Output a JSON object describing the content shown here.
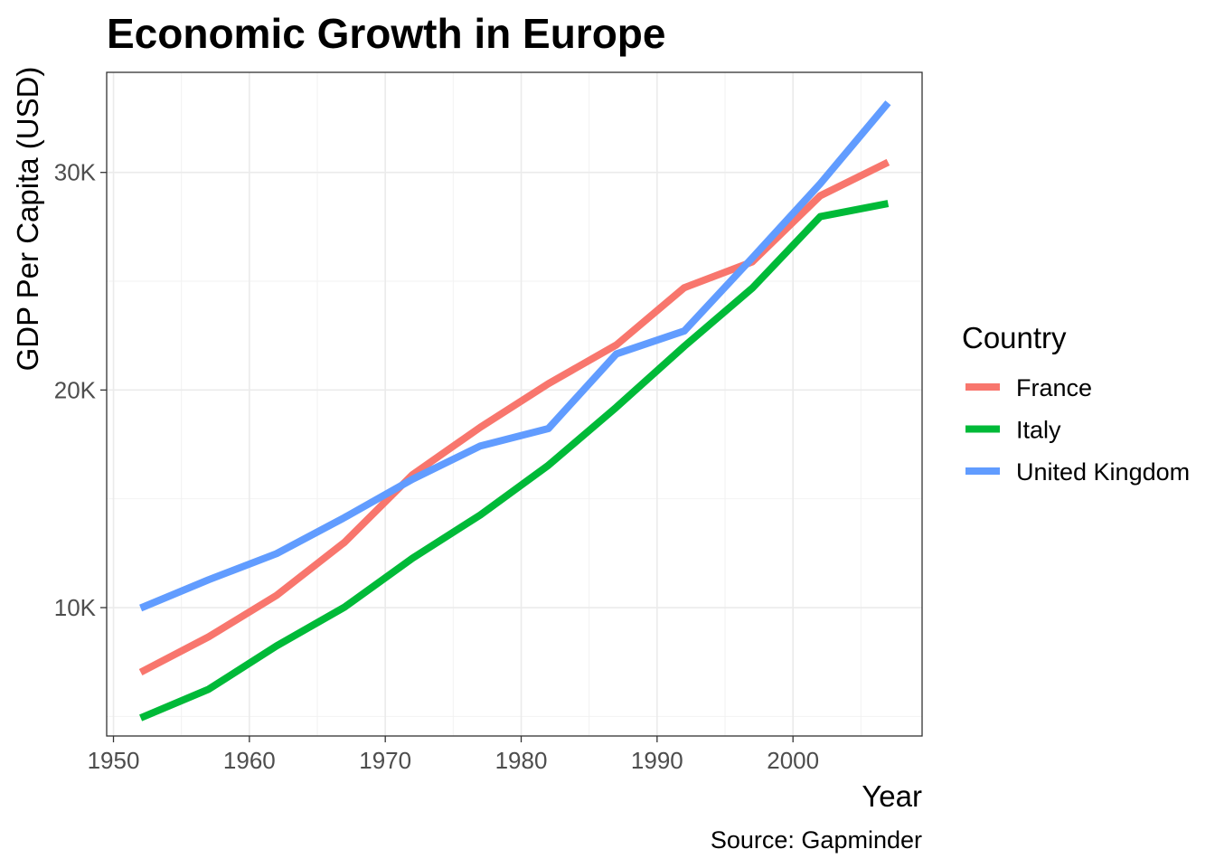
{
  "chart_data": {
    "type": "line",
    "title": "Economic Growth in Europe",
    "xlabel": "Year",
    "ylabel": "GDP Per Capita (USD)",
    "caption": "Source: Gapminder",
    "legend_title": "Country",
    "legend_position": "right",
    "grid": true,
    "xlim": [
      1949.5,
      2009.5
    ],
    "ylim": [
      4100,
      34600
    ],
    "x_ticks": [
      1950,
      1960,
      1970,
      1980,
      1990,
      2000
    ],
    "x_tick_labels": [
      "1950",
      "1960",
      "1970",
      "1980",
      "1990",
      "2000"
    ],
    "y_ticks": [
      10000,
      20000,
      30000
    ],
    "y_tick_labels": [
      "10K",
      "20K",
      "30K"
    ],
    "x": [
      1952,
      1957,
      1962,
      1967,
      1972,
      1977,
      1982,
      1987,
      1992,
      1997,
      2002,
      2007
    ],
    "series": [
      {
        "name": "France",
        "color": "#F8766D",
        "values": [
          7030,
          8660,
          10560,
          13000,
          16110,
          18290,
          20290,
          22070,
          24700,
          25890,
          28930,
          30470
        ]
      },
      {
        "name": "Italy",
        "color": "#00BA38",
        "values": [
          4930,
          6250,
          8240,
          10020,
          12270,
          14260,
          16540,
          19210,
          22010,
          24680,
          27970,
          28570
        ]
      },
      {
        "name": "United Kingdom",
        "color": "#619CFF",
        "values": [
          9980,
          11280,
          12480,
          14140,
          15900,
          17430,
          18230,
          21660,
          22710,
          26070,
          29480,
          33200
        ]
      }
    ]
  }
}
